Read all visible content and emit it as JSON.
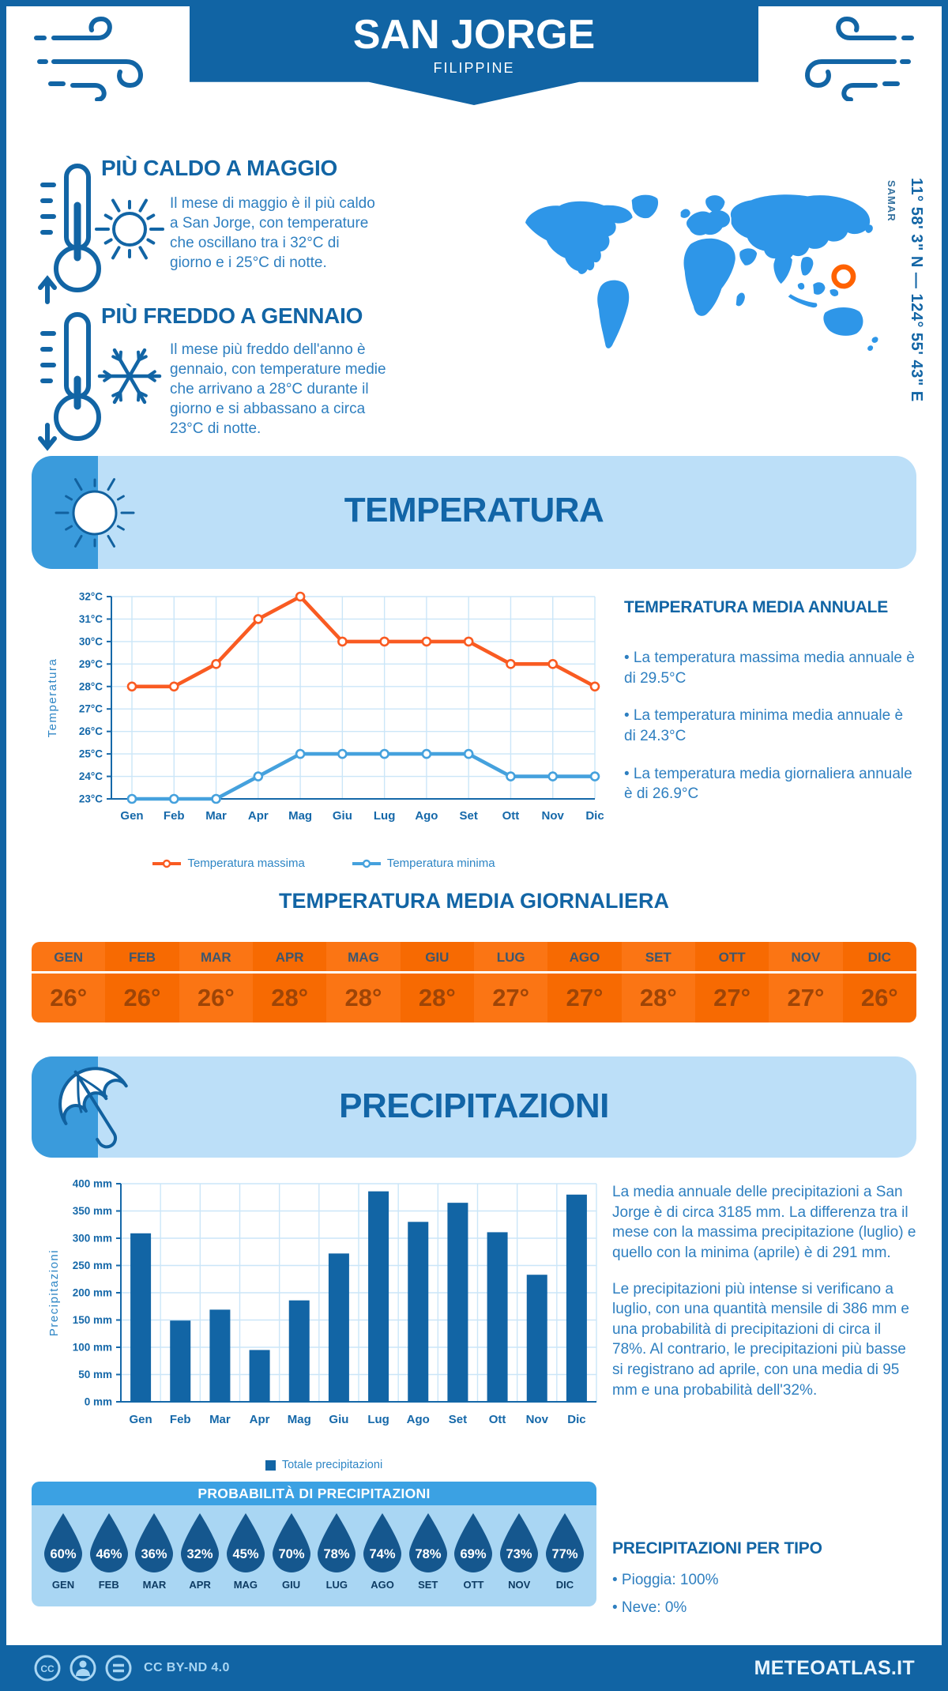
{
  "header": {
    "title": "SAN JORGE",
    "subtitle": "FILIPPINE"
  },
  "highlights": {
    "warm": {
      "title": "PIÙ CALDO A MAGGIO",
      "text": "Il mese di maggio è il più caldo a San Jorge, con temperature che oscillano tra i 32°C di giorno e i 25°C di notte."
    },
    "cold": {
      "title": "PIÙ FREDDO A GENNAIO",
      "text": "Il mese più freddo dell'anno è gennaio, con temperature medie che arrivano a 28°C durante il giorno e si abbassano a circa 23°C di notte."
    }
  },
  "map": {
    "region_label": "SAMAR",
    "coordinates": "11° 58' 3\" N — 124° 55' 43\" E",
    "marker_color": "#FF6200",
    "land_color": "#2E96E8"
  },
  "months": {
    "upper": [
      "GEN",
      "FEB",
      "MAR",
      "APR",
      "MAG",
      "GIU",
      "LUG",
      "AGO",
      "SET",
      "OTT",
      "NOV",
      "DIC"
    ],
    "title_case": [
      "Gen",
      "Feb",
      "Mar",
      "Apr",
      "Mag",
      "Giu",
      "Lug",
      "Ago",
      "Set",
      "Ott",
      "Nov",
      "Dic"
    ]
  },
  "temperature_section": {
    "banner_title": "TEMPERATURA",
    "annual": {
      "title": "TEMPERATURA MEDIA ANNUALE",
      "bullets": [
        "• La temperatura massima media annuale è di 29.5°C",
        "• La temperatura minima media annuale è di 24.3°C",
        "• La temperatura media giornaliera annuale è di 26.9°C"
      ]
    },
    "daily_table": {
      "title": "TEMPERATURA MEDIA GIORNALIERA",
      "values": [
        "26°",
        "26°",
        "26°",
        "28°",
        "28°",
        "28°",
        "27°",
        "27°",
        "28°",
        "27°",
        "27°",
        "26°"
      ]
    }
  },
  "precipitation_section": {
    "banner_title": "PRECIPITAZIONI",
    "paragraphs": [
      "La media annuale delle precipitazioni a San Jorge è di circa 3185 mm. La differenza tra il mese con la massima precipitazione (luglio) e quello con la minima (aprile) è di 291 mm.",
      "Le precipitazioni più intense si verificano a luglio, con una quantità mensile di 386 mm e una probabilità di precipitazioni di circa il 78%. Al contrario, le precipitazioni più basse si registrano ad aprile, con una media di 95 mm e una probabilità dell'32%."
    ],
    "probability": {
      "title": "PROBABILITÀ DI PRECIPITAZIONI",
      "values": [
        "60%",
        "46%",
        "36%",
        "32%",
        "45%",
        "70%",
        "78%",
        "74%",
        "78%",
        "69%",
        "73%",
        "77%"
      ]
    },
    "by_type": {
      "title": "PRECIPITAZIONI PER TIPO",
      "bullets": [
        "• Pioggia: 100%",
        "• Neve: 0%"
      ]
    }
  },
  "footer": {
    "license": "CC BY-ND 4.0",
    "site": "METEOATLAS.IT"
  },
  "colors": {
    "primary_dark_blue": "#1164A4",
    "heading_blue": "#1265A5",
    "body_blue": "#2E7FC0",
    "light_blue": "#A9D6F3",
    "banner_light_blue": "#BCDFF8",
    "tab_blue": "#3A9BDC",
    "grid_blue": "#CBE6F8",
    "max_line_orange": "#F95B22",
    "min_line_blue": "#45A1DD",
    "bar_blue": "#1265A5",
    "drop_blue": "#15578E",
    "table_orange": "#FB7514",
    "table_orange_alt": "#F76A02"
  },
  "icons": {
    "wind": "wind-gust-swirls",
    "thermometer_up": "thermometer with up arrow",
    "thermometer_down": "thermometer with down arrow",
    "sun": "line-art sun",
    "snowflake": "line-art snowflake",
    "umbrella": "tilted umbrella",
    "water_drop": "teardrop",
    "cc": "creative-commons circles"
  },
  "chart_data": [
    {
      "type": "line",
      "title": "Temperatura media mensile",
      "categories": [
        "Gen",
        "Feb",
        "Mar",
        "Apr",
        "Mag",
        "Giu",
        "Lug",
        "Ago",
        "Set",
        "Ott",
        "Nov",
        "Dic"
      ],
      "series": [
        {
          "name": "Temperatura massima",
          "color": "#F95B22",
          "values": [
            28,
            28,
            29,
            31,
            32,
            30,
            30,
            30,
            30,
            29,
            29,
            28
          ]
        },
        {
          "name": "Temperatura minima",
          "color": "#45A1DD",
          "values": [
            23,
            23,
            23,
            24,
            25,
            25,
            25,
            25,
            25,
            24,
            24,
            24
          ]
        }
      ],
      "ylabel": "Temperatura",
      "ylim": [
        23,
        32
      ],
      "ytick_step": 1,
      "ytick_suffix": "°C",
      "grid": true,
      "legend_position": "bottom"
    },
    {
      "type": "bar",
      "title": "Totale precipitazioni mensili",
      "categories": [
        "Gen",
        "Feb",
        "Mar",
        "Apr",
        "Mag",
        "Giu",
        "Lug",
        "Ago",
        "Set",
        "Ott",
        "Nov",
        "Dic"
      ],
      "series": [
        {
          "name": "Totale precipitazioni",
          "color": "#1265A5",
          "values": [
            309,
            149,
            169,
            95,
            186,
            272,
            386,
            330,
            365,
            311,
            233,
            380
          ]
        }
      ],
      "ylabel": "Precipitazioni",
      "ylim": [
        0,
        400
      ],
      "ytick_step": 50,
      "ytick_suffix": " mm",
      "grid": true,
      "legend_position": "bottom"
    }
  ]
}
